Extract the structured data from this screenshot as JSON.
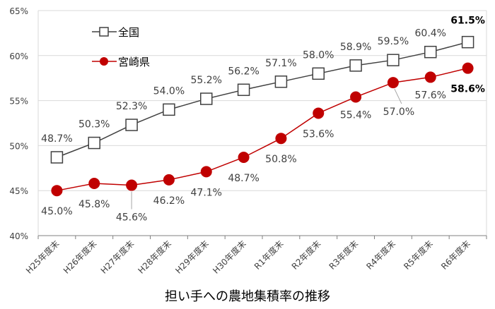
{
  "chart_data": {
    "type": "line",
    "title": "担い手への農地集積率の推移",
    "categories": [
      "H25年度末",
      "H26年度末",
      "H27年度末",
      "H28年度末",
      "H29年度末",
      "H30年度末",
      "R1年度末",
      "R2年度末",
      "R3年度末",
      "R4年度末",
      "R5年度末",
      "R6年度末"
    ],
    "series": [
      {
        "name": "全国",
        "color": "#404040",
        "marker": "square-open",
        "values": [
          48.7,
          50.3,
          52.3,
          54.0,
          55.2,
          56.2,
          57.1,
          58.0,
          58.9,
          59.5,
          60.4,
          61.5
        ]
      },
      {
        "name": "宮崎県",
        "color": "#c00000",
        "marker": "circle-filled",
        "values": [
          45.0,
          45.8,
          45.6,
          46.2,
          47.1,
          48.7,
          50.8,
          53.6,
          55.4,
          57.0,
          57.6,
          58.6
        ]
      }
    ],
    "ylim": [
      40,
      65
    ],
    "yticks": [
      "40%",
      "45%",
      "50%",
      "55%",
      "60%",
      "65%"
    ],
    "ytick_values": [
      40,
      45,
      50,
      55,
      60,
      65
    ],
    "grid": true,
    "legend": "top-left",
    "xlabel": "",
    "ylabel": ""
  }
}
